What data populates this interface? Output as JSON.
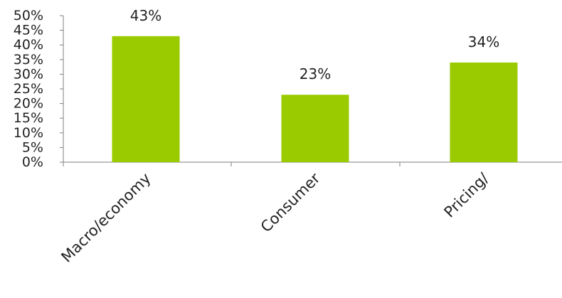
{
  "chart_data": {
    "type": "bar",
    "categories": [
      "Macro/economy",
      "Consumer",
      "Pricing/"
    ],
    "values": [
      43,
      23,
      34
    ],
    "value_labels": [
      "43%",
      "23%",
      "34%"
    ],
    "title": "",
    "xlabel": "",
    "ylabel": "",
    "ylim": [
      0,
      50
    ],
    "yticks": [
      0,
      5,
      10,
      15,
      20,
      25,
      30,
      35,
      40,
      45,
      50
    ],
    "ytick_labels": [
      "0%",
      "5%",
      "10%",
      "15%",
      "20%",
      "25%",
      "30%",
      "35%",
      "40%",
      "45%",
      "50%"
    ],
    "grid": false,
    "legend": "none",
    "bar_color": "#9ACB00",
    "axis_color": "#7F7F7F",
    "text_color": "#222222"
  }
}
